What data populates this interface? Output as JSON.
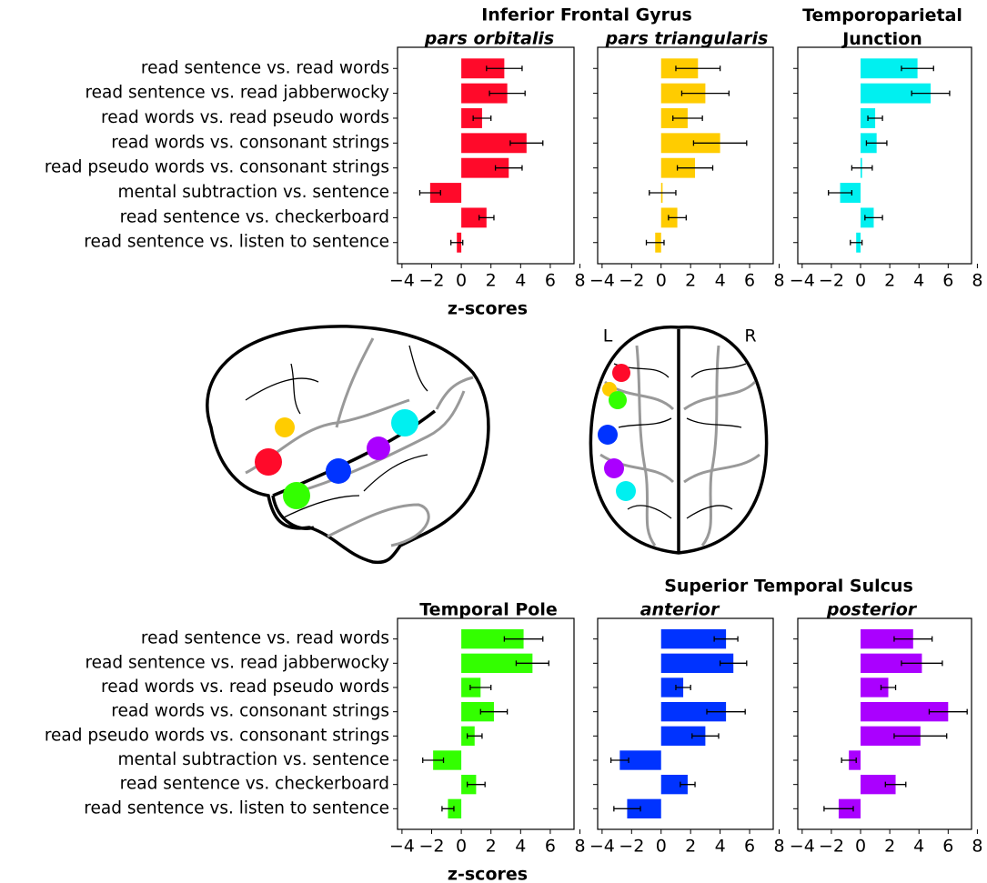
{
  "chart_data": [
    {
      "type": "barh",
      "group_title": "Inferior Frontal Gyrus",
      "subtitle": "pars orbitalis",
      "xlabel": "z-scores",
      "categories": [
        "read sentence vs. read words",
        "read sentence vs. read jabberwocky",
        "read words vs. read pseudo words",
        "read words vs. consonant strings",
        "read pseudo words vs. consonant strings",
        "mental subtraction vs. sentence",
        "read sentence vs. checkerboard",
        "read sentence vs. listen to sentence"
      ],
      "values": [
        2.9,
        3.1,
        1.4,
        4.4,
        3.2,
        -2.1,
        1.7,
        -0.3
      ],
      "errors": [
        1.2,
        1.2,
        0.6,
        1.1,
        0.9,
        0.7,
        0.5,
        0.4
      ],
      "color": "#ff0a2a",
      "xlim": [
        -4.3,
        7.6
      ],
      "xticks": [
        {
          "value": -4,
          "label": "−4"
        },
        {
          "value": -2,
          "label": "−2"
        },
        0,
        2,
        4,
        6,
        8
      ]
    },
    {
      "type": "barh",
      "subtitle": "pars triangularis",
      "values": [
        2.5,
        3.0,
        1.8,
        4.0,
        2.3,
        0.1,
        1.1,
        -0.4
      ],
      "errors": [
        1.5,
        1.6,
        1.0,
        1.8,
        1.2,
        0.9,
        0.6,
        0.6
      ],
      "color": "#ffcc00",
      "xlim": [
        -4.3,
        7.6
      ],
      "xticks": [
        {
          "value": -4,
          "label": "−4"
        },
        {
          "value": -2,
          "label": "−2"
        },
        0,
        2,
        4,
        6,
        8
      ]
    },
    {
      "type": "barh",
      "subtitle": "Temporoparietal Junction",
      "values": [
        3.9,
        4.8,
        1.0,
        1.1,
        0.1,
        -1.4,
        0.9,
        -0.3
      ],
      "errors": [
        1.1,
        1.3,
        0.5,
        0.7,
        0.7,
        0.8,
        0.6,
        0.4
      ],
      "color": "#00f0f0",
      "xlim": [
        -4.3,
        7.6
      ],
      "xticks": [
        {
          "value": -4,
          "label": "−4"
        },
        {
          "value": -2,
          "label": "−2"
        },
        0,
        2,
        4,
        6,
        8
      ]
    },
    {
      "type": "barh",
      "subtitle": "Temporal Pole",
      "xlabel": "z-scores",
      "categories": [
        "read sentence vs. read words",
        "read sentence vs. read jabberwocky",
        "read words vs. read pseudo words",
        "read words vs. consonant strings",
        "read pseudo words vs. consonant strings",
        "mental subtraction vs. sentence",
        "read sentence vs. checkerboard",
        "read sentence vs. listen to sentence"
      ],
      "values": [
        4.2,
        4.8,
        1.3,
        2.2,
        0.9,
        -1.9,
        1.0,
        -0.9
      ],
      "errors": [
        1.3,
        1.1,
        0.7,
        0.9,
        0.5,
        0.7,
        0.6,
        0.4
      ],
      "color": "#33ff00",
      "xlim": [
        -4.3,
        7.6
      ],
      "xticks": [
        {
          "value": -4,
          "label": "−4"
        },
        {
          "value": -2,
          "label": "−2"
        },
        0,
        2,
        4,
        6,
        8
      ]
    },
    {
      "type": "barh",
      "group_title": "Superior Temporal Sulcus",
      "subtitle": "anterior",
      "values": [
        4.4,
        4.9,
        1.5,
        4.4,
        3.0,
        -2.8,
        1.8,
        -2.3
      ],
      "errors": [
        0.8,
        0.9,
        0.5,
        1.3,
        0.9,
        0.6,
        0.5,
        0.9
      ],
      "color": "#0033ff",
      "xlim": [
        -4.3,
        7.6
      ],
      "xticks": [
        {
          "value": -4,
          "label": "−4"
        },
        {
          "value": -2,
          "label": "−2"
        },
        0,
        2,
        4,
        6,
        8
      ]
    },
    {
      "type": "barh",
      "subtitle": "posterior",
      "values": [
        3.6,
        4.2,
        1.9,
        6.0,
        4.1,
        -0.8,
        2.4,
        -1.5
      ],
      "errors": [
        1.3,
        1.4,
        0.5,
        1.3,
        1.8,
        0.5,
        0.7,
        1.0
      ],
      "color": "#aa00ff",
      "xlim": [
        -4.3,
        7.6
      ],
      "xticks": [
        {
          "value": -4,
          "label": "−4"
        },
        {
          "value": -2,
          "label": "−2"
        },
        0,
        2,
        4,
        6,
        8
      ]
    }
  ],
  "brain": {
    "left_label": "L",
    "right_label": "R"
  }
}
